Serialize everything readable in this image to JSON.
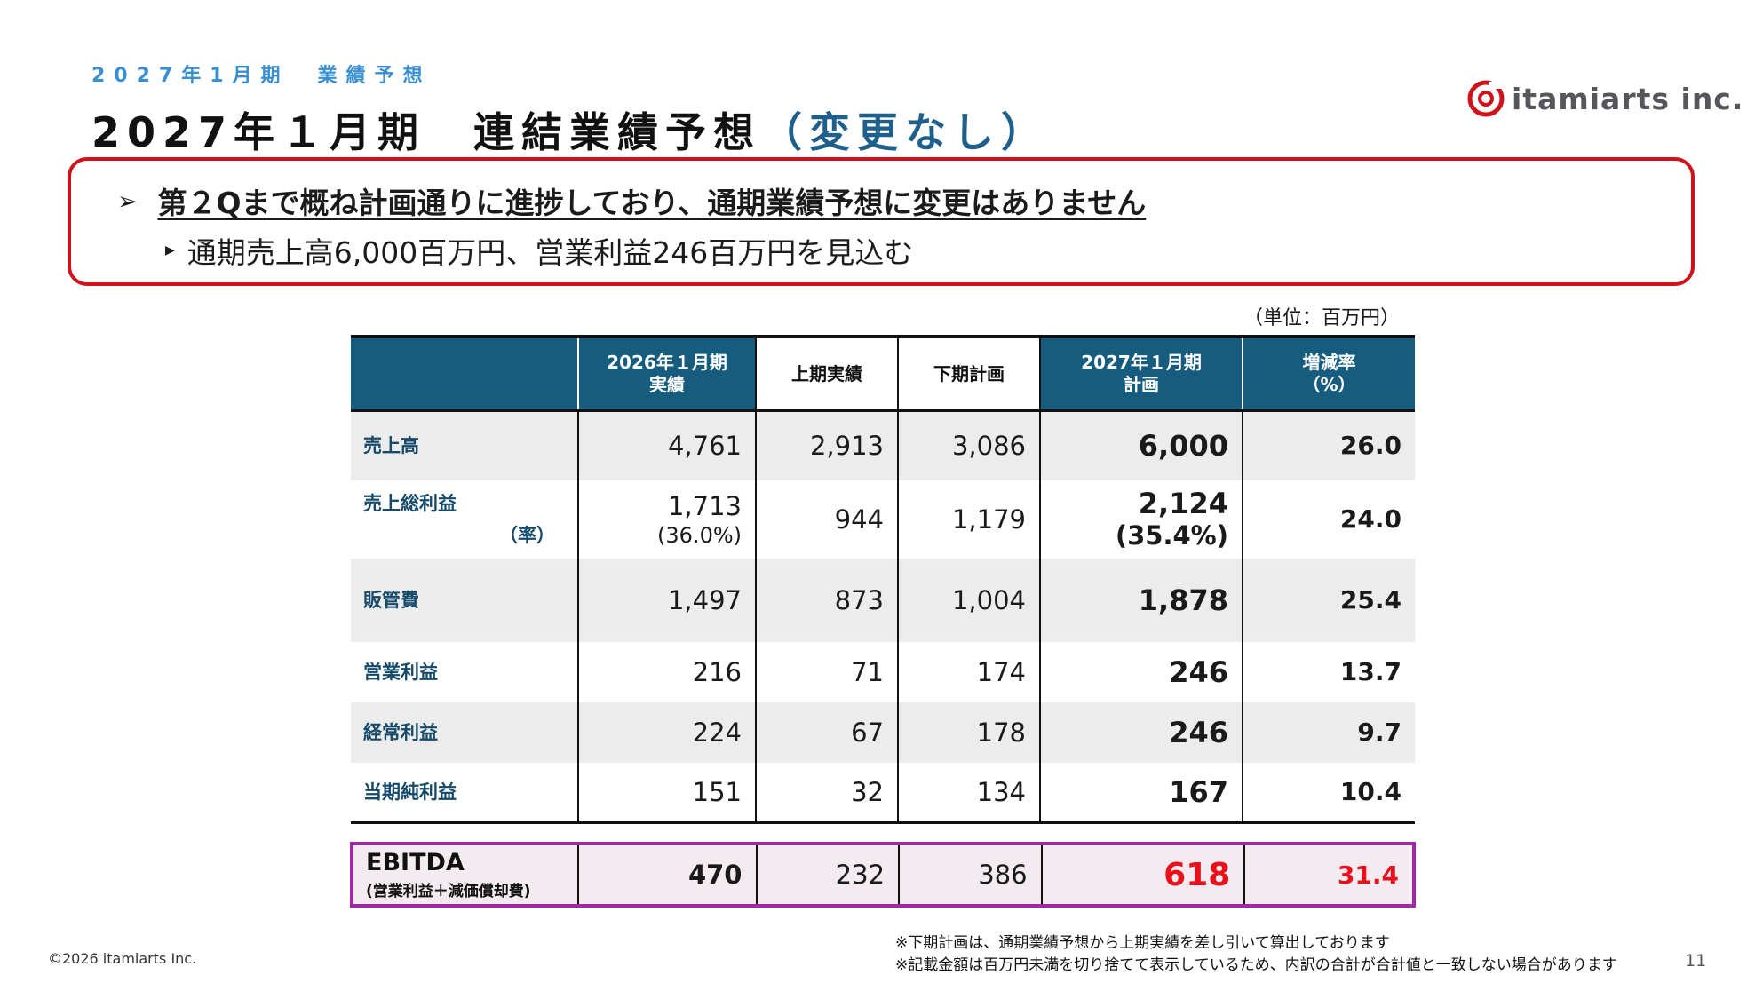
{
  "header": {
    "subtitle": "2027年1月期　業績予想",
    "title_main": "2027年１月期　連結業績予想",
    "title_accent": "（変更なし）",
    "logo_text": "itamiarts inc."
  },
  "callout": {
    "headline": "第２Qまで概ね計画通りに進捗しており、通期業績予想に変更はありません",
    "bullet": "通期売上高6,000百万円、営業利益246百万円を見込む"
  },
  "unit_label": "（単位：百万円）",
  "table": {
    "headers": [
      {
        "line1": "",
        "line2": ""
      },
      {
        "line1": "2026年１月期",
        "line2": "実績"
      },
      {
        "line1": "上期実績",
        "line2": ""
      },
      {
        "line1": "下期計画",
        "line2": ""
      },
      {
        "line1": "2027年１月期",
        "line2": "計画"
      },
      {
        "line1": "増減率",
        "line2": "（%）"
      }
    ],
    "rows": [
      {
        "label": "売上高",
        "sub_label": "",
        "fy2026": "4,761",
        "fy2026_sub": "",
        "h1": "2,913",
        "h2": "3,086",
        "plan": "6,000",
        "plan_sub": "",
        "rate": "26.0"
      },
      {
        "label": "売上総利益",
        "sub_label": "（率）",
        "fy2026": "1,713",
        "fy2026_sub": "(36.0%)",
        "h1": "944",
        "h2": "1,179",
        "plan": "2,124",
        "plan_sub": "(35.4%)",
        "rate": "24.0"
      },
      {
        "label": "販管費",
        "sub_label": "",
        "fy2026": "1,497",
        "fy2026_sub": "",
        "h1": "873",
        "h2": "1,004",
        "plan": "1,878",
        "plan_sub": "",
        "rate": "25.4"
      },
      {
        "label": "営業利益",
        "sub_label": "",
        "fy2026": "216",
        "fy2026_sub": "",
        "h1": "71",
        "h2": "174",
        "plan": "246",
        "plan_sub": "",
        "rate": "13.7"
      },
      {
        "label": "経常利益",
        "sub_label": "",
        "fy2026": "224",
        "fy2026_sub": "",
        "h1": "67",
        "h2": "178",
        "plan": "246",
        "plan_sub": "",
        "rate": "9.7"
      },
      {
        "label": "当期純利益",
        "sub_label": "",
        "fy2026": "151",
        "fy2026_sub": "",
        "h1": "32",
        "h2": "134",
        "plan": "167",
        "plan_sub": "",
        "rate": "10.4"
      }
    ],
    "ebitda": {
      "label": "EBITDA",
      "label_sub": "(営業利益＋減価償却費)",
      "fy2026": "470",
      "h1": "232",
      "h2": "386",
      "plan": "618",
      "rate": "31.4"
    }
  },
  "notes": [
    "※下期計画は、通期業績予想から上期実績を差し引いて算出しております",
    "※記載金額は百万円未満を切り捨てて表示しているため、内訳の合計が合計値と一致しない場合があります"
  ],
  "footer": {
    "copyright": "©2026 itamiarts Inc.",
    "page_number": "11"
  },
  "colors": {
    "header_fill": "#165c7e",
    "accent_blue": "#1f5f8b",
    "subtitle_blue": "#3a8fd0",
    "callout_border": "#d0121b",
    "ebitda_border": "#a02aa4",
    "ebitda_highlight": "#e8101a",
    "logo_red": "#d0121b"
  }
}
